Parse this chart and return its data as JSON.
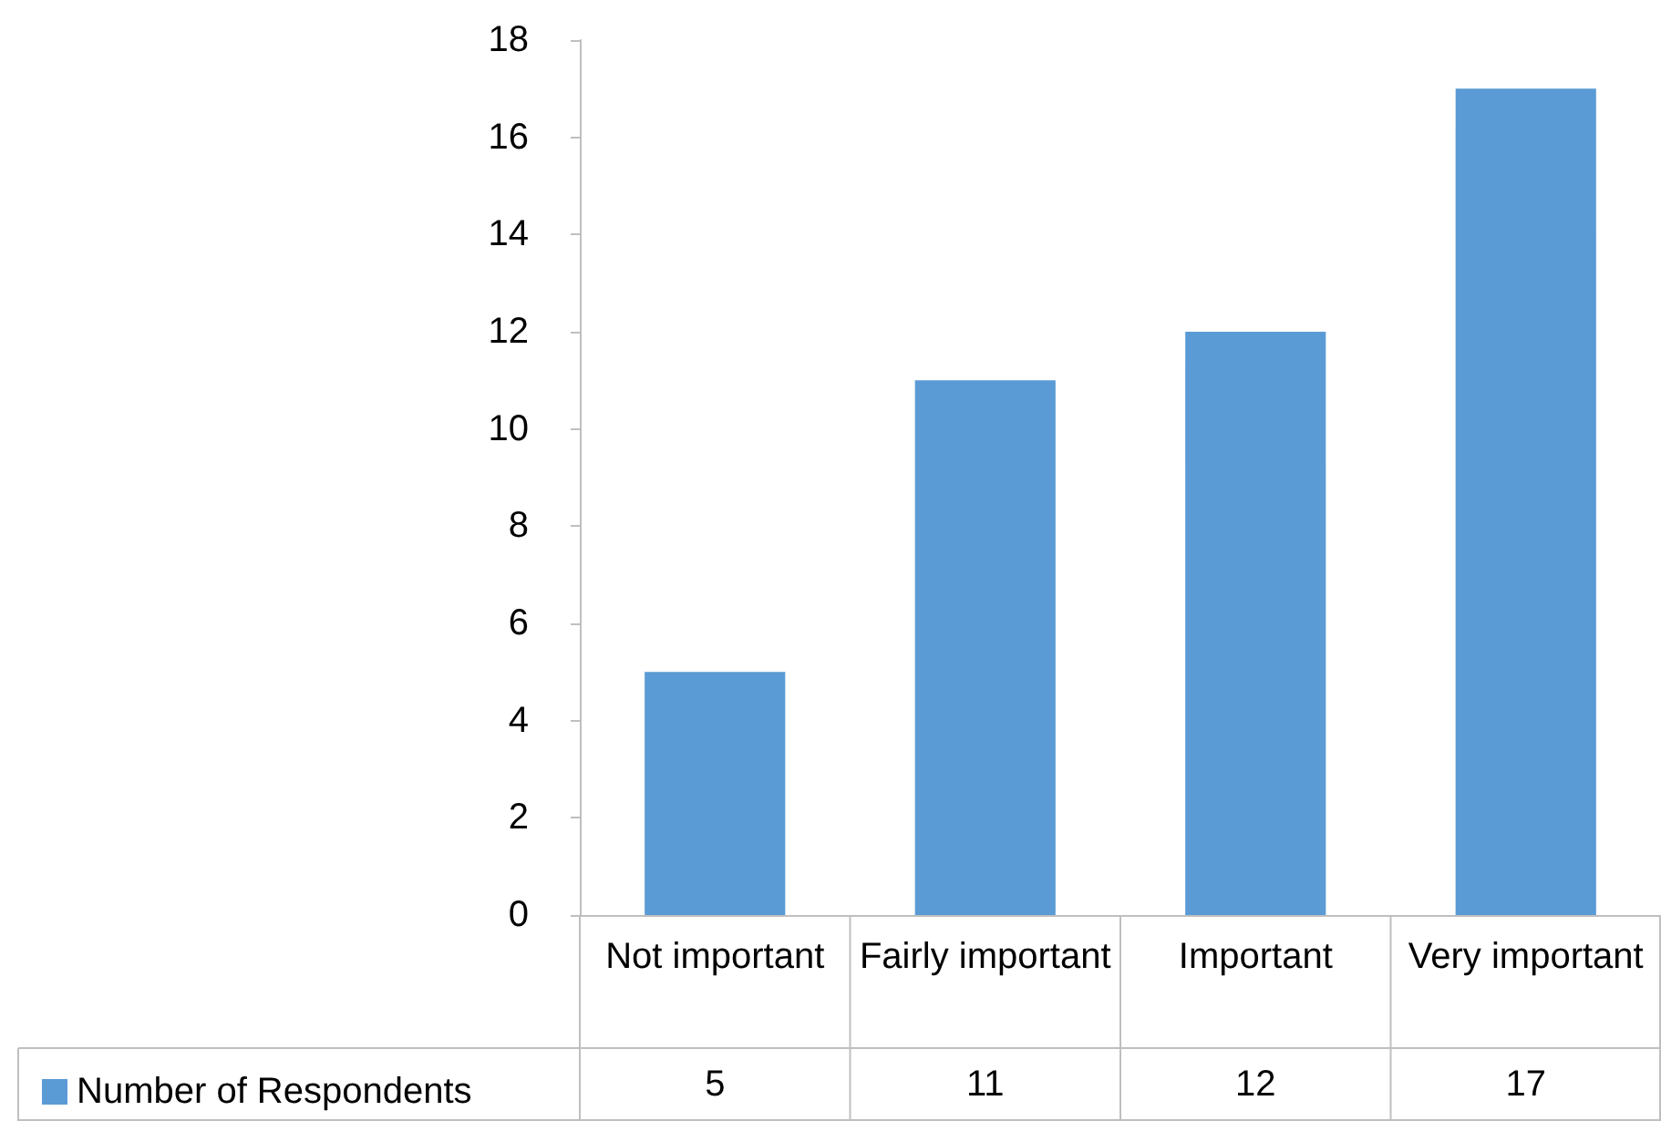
{
  "chart_data": {
    "type": "bar",
    "categories": [
      "Not important",
      "Fairly important",
      "Important",
      "Very important"
    ],
    "series": [
      {
        "name": "Number of Respondents",
        "color": "#5b9bd5",
        "values": [
          5,
          11,
          12,
          17
        ]
      }
    ],
    "ylim": [
      0,
      18
    ],
    "yticks": [
      0,
      2,
      4,
      6,
      8,
      10,
      12,
      14,
      16,
      18
    ],
    "grid": false,
    "legend": "bottom left",
    "data_labels": true
  }
}
